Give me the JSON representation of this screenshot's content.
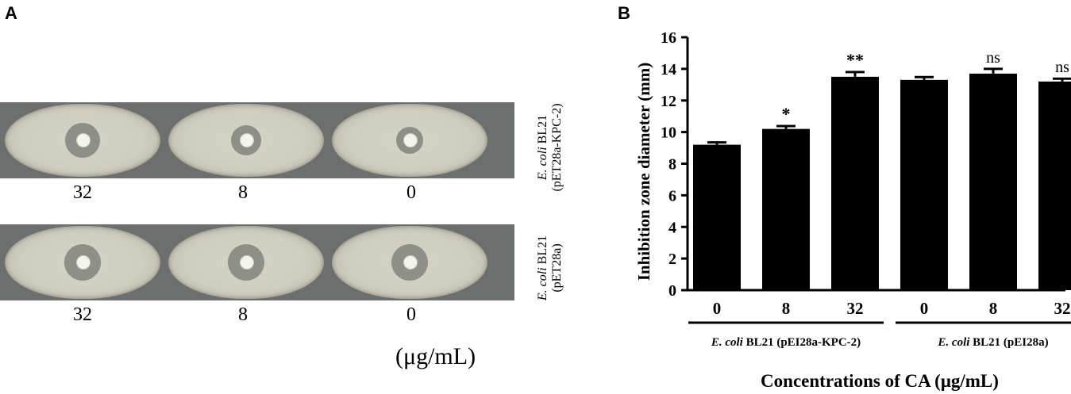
{
  "panel_a": {
    "letter": "A",
    "rows": [
      {
        "strain_italic": "E. coli",
        "strain_rest": " BL21",
        "plasmid": "(pET28a-KPC-2)",
        "plates": [
          {
            "label": "32",
            "zone_fraction": 0.6
          },
          {
            "label": "8",
            "zone_fraction": 0.45
          },
          {
            "label": "0",
            "zone_fraction": 0.35
          }
        ]
      },
      {
        "strain_italic": "E. coli",
        "strain_rest": " BL21",
        "plasmid": "(pET28a)",
        "plates": [
          {
            "label": "32",
            "zone_fraction": 0.65
          },
          {
            "label": "8",
            "zone_fraction": 0.65
          },
          {
            "label": "0",
            "zone_fraction": 0.65
          }
        ]
      }
    ],
    "unit": "(μg/mL)"
  },
  "panel_b": {
    "letter": "B"
  },
  "chart_data": {
    "type": "bar",
    "categories": [
      "0",
      "8",
      "32",
      "0",
      "8",
      "32"
    ],
    "values": [
      9.2,
      10.2,
      13.5,
      13.3,
      13.7,
      13.2
    ],
    "errors": [
      0.15,
      0.18,
      0.3,
      0.18,
      0.3,
      0.18
    ],
    "significance": [
      "",
      "*",
      "**",
      "",
      "ns",
      "ns"
    ],
    "groups": [
      {
        "label_italic": "E. coli",
        "label_rest": " BL21 (pEI28a-KPC-2)",
        "category_indices": [
          0,
          1,
          2
        ]
      },
      {
        "label_italic": "E. coli",
        "label_rest": " BL21 (pEI28a)",
        "category_indices": [
          3,
          4,
          5
        ]
      }
    ],
    "ylabel": "Inhibition zone diameter (mm)",
    "xlabel": "Concentrations of CA (μg/mL)",
    "ylim": [
      0,
      16
    ],
    "yticks": [
      0,
      2,
      4,
      6,
      8,
      10,
      12,
      14,
      16
    ],
    "bar_color": "#000000",
    "grid": false
  }
}
